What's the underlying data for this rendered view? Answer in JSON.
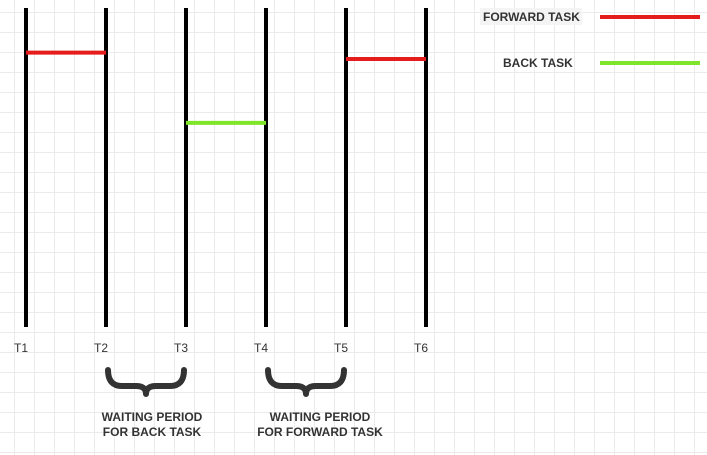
{
  "timeline": {
    "ticks": [
      "T1",
      "T2",
      "T3",
      "T4",
      "T5",
      "T6"
    ]
  },
  "colors": {
    "forward": "#e51c1c",
    "back": "#7fe52a",
    "timeline": "#000000",
    "brace": "#333333"
  },
  "tasks": [
    {
      "type": "forward",
      "from": "T1",
      "to": "T2",
      "level": 0.86
    },
    {
      "type": "back",
      "from": "T3",
      "to": "T4",
      "level": 0.64
    },
    {
      "type": "forward",
      "from": "T5",
      "to": "T6",
      "level": 0.84
    }
  ],
  "legend": {
    "forward_label": "FORWARD TASK",
    "back_label": "BACK TASK"
  },
  "annotations": [
    {
      "from": "T2",
      "to": "T3",
      "line1": "WAITING PERIOD",
      "line2": "FOR BACK TASK"
    },
    {
      "from": "T4",
      "to": "T5",
      "line1": "WAITING PERIOD",
      "line2": "FOR FORWARD TASK"
    }
  ]
}
